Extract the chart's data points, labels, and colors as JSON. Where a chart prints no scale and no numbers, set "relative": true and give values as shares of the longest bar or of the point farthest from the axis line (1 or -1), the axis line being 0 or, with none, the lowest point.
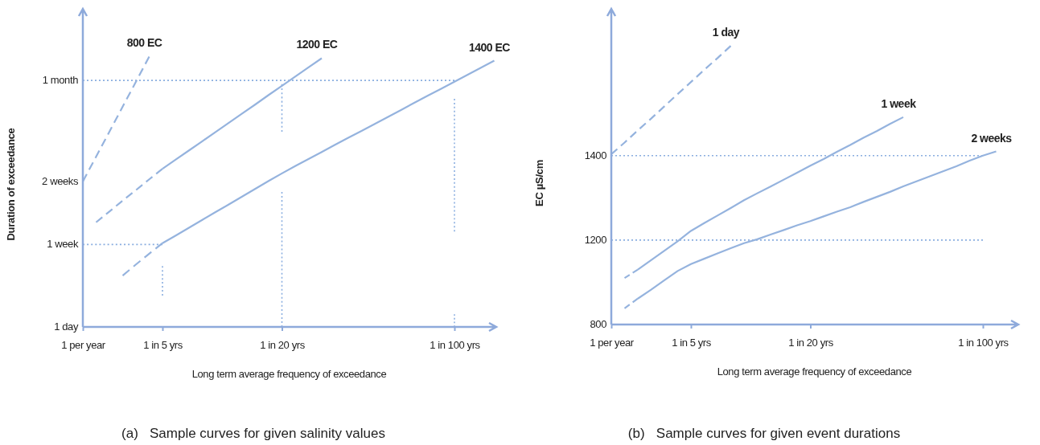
{
  "chart_data": [
    {
      "type": "line",
      "title": "(a)   Sample curves for given salinity values",
      "xlabel": "Long term average frequency of exceedance",
      "ylabel": "Duration of exceedance",
      "relative": true,
      "categories": [
        "1 per year",
        null,
        null,
        null,
        null,
        null,
        "1 in 5 yrs",
        null,
        null,
        null,
        null,
        null,
        null,
        null,
        null,
        "1 in 20 yrs",
        null,
        null,
        null,
        null,
        null,
        null,
        null,
        null,
        null,
        null,
        null,
        null,
        "1 in 100 yrs",
        null,
        null,
        null
      ],
      "annotations": [
        "1 day",
        {
          "text": "1 week",
          "x": "1 per year",
          "y": 0.305
        },
        {
          "text": "2 weeks",
          "x": "1 per year",
          "y": 0.538
        },
        {
          "text": "1 month",
          "x": "1 per year",
          "y": 0.912
        }
      ],
      "series": [
        {
          "color": "#8aaee0",
          "line_style": "dotted",
          "values": [
            0.912,
            0.912,
            0.912,
            0.912,
            0.912,
            0.912,
            0.912,
            0.912,
            0.912,
            0.912,
            0.912,
            0.912,
            0.912,
            0.912,
            0.912,
            0.912,
            0.912,
            0.912,
            0.912,
            0.912,
            0.912,
            0.912,
            0.912,
            0.912,
            0.912,
            0.912,
            0.912,
            0.912,
            0.912,
            null,
            null,
            null
          ]
        },
        {
          "color": "#8aaee0",
          "line_style": "dotted",
          "values": [
            0.305,
            0.305,
            0.305,
            0.305,
            0.305,
            0.305,
            0.305,
            null,
            null,
            null,
            null,
            null,
            null,
            null,
            null,
            null,
            null,
            null,
            null,
            null,
            null,
            null,
            null,
            null,
            null,
            null,
            null,
            null,
            null,
            null,
            null,
            null
          ]
        },
        {
          "color": "#8aaee0",
          "line_style": "dotted",
          "x": [
            "1 in 20 yrs",
            "1 in 20 yrs"
          ],
          "values": [
            0.898,
            0.722
          ]
        },
        {
          "color": "#8aaee0",
          "line_style": "dotted",
          "x": [
            "1 in 20 yrs",
            "1 in 20 yrs"
          ],
          "values": [
            0.499,
            0
          ]
        },
        {
          "color": "#8aaee0",
          "line_style": "dotted",
          "x": [
            "1 in 100 yrs",
            "1 in 100 yrs"
          ],
          "values": [
            0.844,
            0.353
          ]
        },
        {
          "color": "#8aaee0",
          "line_style": "dotted",
          "x": [
            "1 in 100 yrs",
            "1 in 100 yrs"
          ],
          "values": [
            0.047,
            0
          ]
        },
        {
          "color": "#8aaee0",
          "line_style": "dotted",
          "x": [
            "1 in 5 yrs",
            "1 in 5 yrs"
          ],
          "values": [
            0.225,
            0.116
          ]
        },
        {
          "name": "800 EC",
          "color": "#95b3de",
          "line_style": "dashed",
          "values": [
            0.538,
            0.63,
            0.722,
            0.815,
            0.907,
            1,
            null,
            null,
            null,
            null,
            null,
            null,
            null,
            null,
            null,
            null,
            null,
            null,
            null,
            null,
            null,
            null,
            null,
            null,
            null,
            null,
            null,
            null,
            null,
            null,
            null,
            null
          ]
        },
        {
          "color": "#95b3de",
          "line_style": "dashed",
          "values": [
            null,
            0.387,
            0.427,
            0.467,
            0.506,
            0.546,
            0.585,
            null,
            null,
            null,
            null,
            null,
            null,
            null,
            null,
            null,
            null,
            null,
            null,
            null,
            null,
            null,
            null,
            null,
            null,
            null,
            null,
            null,
            null,
            null,
            null,
            null
          ]
        },
        {
          "name": "1200 EC",
          "color": "#95b3de",
          "line_style": "solid",
          "values": [
            null,
            null,
            null,
            null,
            null,
            null,
            0.585,
            0.619,
            0.653,
            0.687,
            0.721,
            0.755,
            0.789,
            0.823,
            0.858,
            0.892,
            0.926,
            0.96,
            0.994,
            null,
            null,
            null,
            null,
            null,
            null,
            null,
            null,
            null,
            null,
            null,
            null,
            null
          ]
        },
        {
          "color": "#95b3de",
          "line_style": "dashed",
          "values": [
            null,
            null,
            null,
            0.19,
            0.231,
            0.271,
            0.31,
            null,
            null,
            null,
            null,
            null,
            null,
            null,
            null,
            null,
            null,
            null,
            null,
            null,
            null,
            null,
            null,
            null,
            null,
            null,
            null,
            null,
            null,
            null,
            null,
            null
          ]
        },
        {
          "name": "1400 EC",
          "color": "#95b3de",
          "line_style": "solid",
          "values": [
            null,
            null,
            null,
            null,
            null,
            null,
            0.31,
            0.338,
            0.367,
            0.396,
            0.425,
            0.453,
            0.482,
            0.511,
            0.54,
            0.568,
            0.595,
            0.621,
            0.647,
            0.674,
            0.7,
            0.725,
            0.751,
            0.777,
            0.803,
            0.83,
            0.856,
            0.881,
            0.907,
            0.933,
            0.959,
            0.985
          ]
        }
      ]
    },
    {
      "type": "line",
      "title": "(b)   Sample curves for given event durations",
      "xlabel": "Long term average frequency of exceedance",
      "ylabel": "EC µS/cm",
      "relative": true,
      "categories": [
        "1 per year",
        null,
        null,
        null,
        null,
        null,
        "1 in 5 yrs",
        null,
        null,
        null,
        null,
        null,
        null,
        null,
        null,
        "1 in 20 yrs",
        null,
        null,
        null,
        null,
        null,
        null,
        null,
        null,
        null,
        null,
        null,
        null,
        "1 in 100 yrs",
        null,
        null
      ],
      "annotations": [
        "800",
        {
          "text": "1200",
          "x": "1 per year",
          "y": 0.303
        },
        {
          "text": "1400",
          "x": "1 per year",
          "y": 0.606
        }
      ],
      "series": [
        {
          "color": "#8aaee0",
          "line_style": "dotted",
          "values": [
            0.606,
            0.606,
            0.606,
            0.606,
            0.606,
            0.606,
            0.606,
            0.606,
            0.606,
            0.606,
            0.606,
            0.606,
            0.606,
            0.606,
            0.606,
            0.606,
            0.606,
            0.606,
            0.606,
            0.606,
            0.606,
            0.606,
            0.606,
            0.606,
            0.606,
            0.606,
            0.606,
            0.606,
            0.606,
            null,
            null
          ]
        },
        {
          "color": "#8aaee0",
          "line_style": "dotted",
          "values": [
            0.303,
            0.303,
            0.303,
            0.303,
            0.303,
            0.303,
            0.303,
            0.303,
            0.303,
            0.303,
            0.303,
            0.303,
            0.303,
            0.303,
            0.303,
            0.303,
            0.303,
            0.303,
            0.303,
            0.303,
            0.303,
            0.303,
            0.303,
            0.303,
            0.303,
            0.303,
            0.303,
            0.303,
            0.303,
            null,
            null
          ]
        },
        {
          "name": "1 day",
          "color": "#95b3de",
          "line_style": "dashed",
          "values": [
            0.611,
            0.653,
            0.697,
            0.739,
            0.783,
            0.827,
            0.87,
            0.914,
            0.956,
            1,
            null,
            null,
            null,
            null,
            null,
            null,
            null,
            null,
            null,
            null,
            null,
            null,
            null,
            null,
            null,
            null,
            null,
            null,
            null,
            null,
            null
          ]
        },
        {
          "color": "#95b3de",
          "line_style": "dashed",
          "values": [
            null,
            0.167,
            0.197,
            null,
            null,
            null,
            null,
            null,
            null,
            null,
            null,
            null,
            null,
            null,
            null,
            null,
            null,
            null,
            null,
            null,
            null,
            null,
            null,
            null,
            null,
            null,
            null,
            null,
            null,
            null,
            null
          ]
        },
        {
          "name": "1 week",
          "color": "#95b3de",
          "line_style": "solid",
          "values": [
            null,
            null,
            0.197,
            0.231,
            0.265,
            0.299,
            0.336,
            0.364,
            0.391,
            0.418,
            0.446,
            0.471,
            0.495,
            0.52,
            0.545,
            0.57,
            0.594,
            0.62,
            0.644,
            0.67,
            0.694,
            0.72,
            0.744,
            null,
            null,
            null,
            null,
            null,
            null,
            null,
            null
          ]
        },
        {
          "color": "#95b3de",
          "line_style": "dashed",
          "values": [
            null,
            0.058,
            0.093,
            null,
            null,
            null,
            null,
            null,
            null,
            null,
            null,
            null,
            null,
            null,
            null,
            null,
            null,
            null,
            null,
            null,
            null,
            null,
            null,
            null,
            null,
            null,
            null,
            null,
            null,
            null,
            null
          ]
        },
        {
          "name": "2 weeks",
          "color": "#95b3de",
          "line_style": "solid",
          "values": [
            null,
            null,
            0.093,
            0.125,
            0.159,
            0.192,
            0.217,
            0.236,
            0.255,
            0.274,
            0.292,
            0.306,
            0.323,
            0.339,
            0.356,
            0.371,
            0.388,
            0.405,
            0.421,
            0.44,
            0.458,
            0.476,
            0.496,
            0.514,
            0.532,
            0.55,
            0.568,
            0.588,
            0.606,
            0.621,
            null
          ]
        }
      ]
    }
  ]
}
